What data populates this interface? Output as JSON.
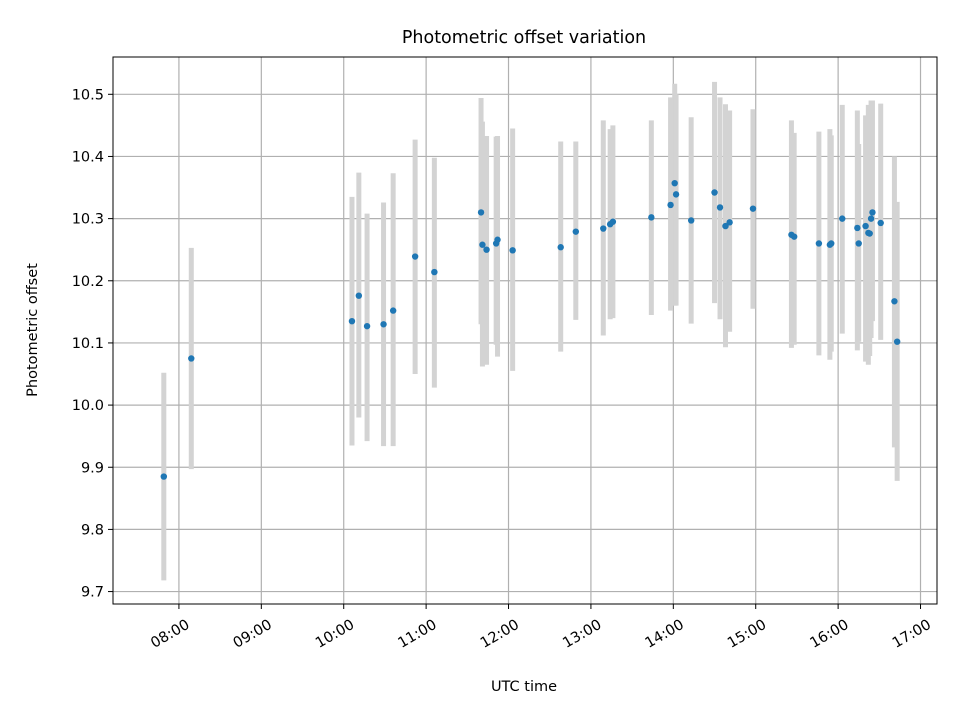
{
  "chart_data": {
    "type": "scatter",
    "title": "Photometric offset variation",
    "xlabel": "UTC time",
    "ylabel": "Photometric offset",
    "grid": true,
    "x_ticks": [
      "08:00",
      "09:00",
      "10:00",
      "11:00",
      "12:00",
      "13:00",
      "14:00",
      "15:00",
      "16:00",
      "17:00"
    ],
    "y_ticks": [
      "9.7",
      "9.8",
      "9.9",
      "10.0",
      "10.1",
      "10.2",
      "10.3",
      "10.4",
      "10.5"
    ],
    "xlim": [
      "07:12",
      "17:12"
    ],
    "ylim": [
      9.68,
      10.56
    ],
    "colors": {
      "point": "#1f77b4",
      "errorbar": "#d3d3d3",
      "grid": "#b0b0b0"
    },
    "series": [
      {
        "x": [
          "07:49",
          "08:09",
          "10:06",
          "10:11",
          "10:17",
          "10:29",
          "10:36",
          "10:52",
          "11:06",
          "11:40",
          "11:41",
          "11:44",
          "11:51",
          "11:52",
          "12:03",
          "12:38",
          "12:49",
          "13:09",
          "13:14",
          "13:16",
          "13:44",
          "13:58",
          "14:01",
          "14:02",
          "14:13",
          "14:30",
          "14:34",
          "14:38",
          "14:41",
          "14:58",
          "15:26",
          "15:28",
          "15:46",
          "15:54",
          "15:55",
          "16:03",
          "16:14",
          "16:15",
          "16:20",
          "16:22",
          "16:23",
          "16:24",
          "16:25",
          "16:31",
          "16:41",
          "16:43"
        ],
        "y": [
          9.885,
          10.075,
          10.135,
          10.176,
          10.127,
          10.13,
          10.152,
          10.239,
          10.214,
          10.31,
          10.258,
          10.25,
          10.26,
          10.266,
          10.249,
          10.254,
          10.279,
          10.284,
          10.291,
          10.295,
          10.302,
          10.322,
          10.357,
          10.339,
          10.297,
          10.342,
          10.318,
          10.288,
          10.294,
          10.316,
          10.274,
          10.271,
          10.26,
          10.258,
          10.26,
          10.3,
          10.285,
          10.26,
          10.288,
          10.277,
          10.276,
          10.3,
          10.31,
          10.293,
          10.167,
          10.102
        ],
        "err_low": [
          9.718,
          9.897,
          9.935,
          9.98,
          9.942,
          9.934,
          9.934,
          10.05,
          10.028,
          10.13,
          10.062,
          10.065,
          10.097,
          10.078,
          10.055,
          10.086,
          10.137,
          10.112,
          10.138,
          10.14,
          10.145,
          10.152,
          10.16,
          10.16,
          10.131,
          10.164,
          10.138,
          10.093,
          10.118,
          10.155,
          10.092,
          10.097,
          10.08,
          10.073,
          10.086,
          10.115,
          10.088,
          10.102,
          10.07,
          10.065,
          10.079,
          10.108,
          10.135,
          10.105,
          9.932,
          9.878
        ],
        "err_high": [
          10.052,
          10.253,
          10.335,
          10.374,
          10.308,
          10.326,
          10.373,
          10.427,
          10.398,
          10.494,
          10.456,
          10.433,
          10.432,
          10.433,
          10.445,
          10.424,
          10.424,
          10.458,
          10.444,
          10.45,
          10.458,
          10.495,
          10.517,
          10.5,
          10.463,
          10.52,
          10.495,
          10.484,
          10.474,
          10.476,
          10.458,
          10.438,
          10.44,
          10.444,
          10.434,
          10.483,
          10.474,
          10.42,
          10.466,
          10.483,
          10.479,
          10.49,
          10.49,
          10.485,
          10.4,
          10.327
        ]
      }
    ]
  }
}
